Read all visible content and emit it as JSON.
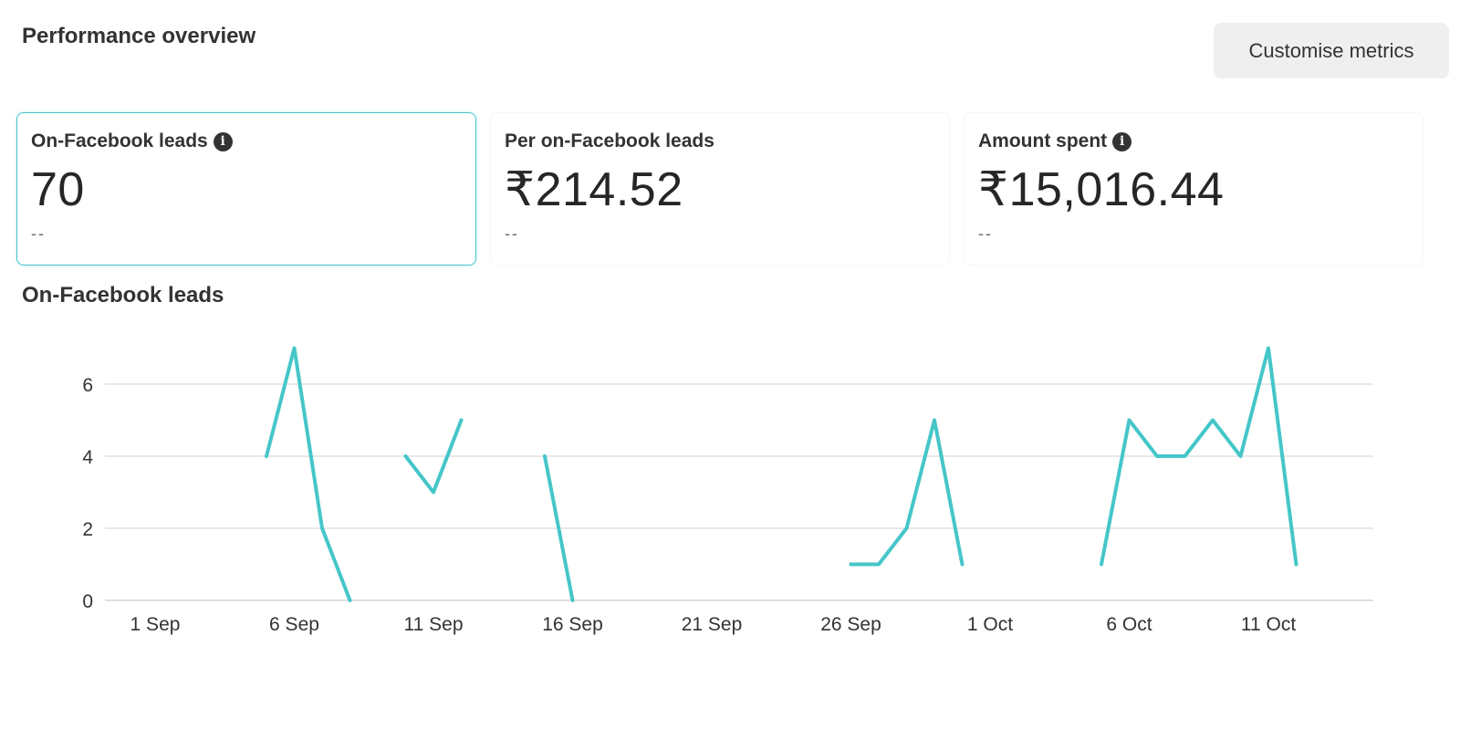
{
  "header": {
    "title": "Performance overview",
    "customise_label": "Customise metrics"
  },
  "metrics": [
    {
      "label": "On-Facebook leads",
      "value": "70",
      "compare": "--",
      "info_icon": "info-icon",
      "selected": true
    },
    {
      "label": "Per on-Facebook leads",
      "value": "₹214.52",
      "compare": "--",
      "selected": false
    },
    {
      "label": "Amount spent",
      "value": "₹15,016.44",
      "compare": "--",
      "info_icon": "info-icon",
      "selected": false
    }
  ],
  "chart_title": "On-Facebook leads",
  "chart_data": {
    "type": "line",
    "title": "On-Facebook leads",
    "xlabel": "",
    "ylabel": "",
    "ylim": [
      0,
      7
    ],
    "yticks": [
      0,
      2,
      4,
      6
    ],
    "x_tick_labels": [
      "1 Sep",
      "6 Sep",
      "11 Sep",
      "16 Sep",
      "21 Sep",
      "26 Sep",
      "1 Oct",
      "6 Oct",
      "11 Oct"
    ],
    "x": [
      "1 Sep",
      "2 Sep",
      "3 Sep",
      "4 Sep",
      "5 Sep",
      "6 Sep",
      "7 Sep",
      "8 Sep",
      "9 Sep",
      "10 Sep",
      "11 Sep",
      "12 Sep",
      "13 Sep",
      "14 Sep",
      "15 Sep",
      "16 Sep",
      "17 Sep",
      "18 Sep",
      "19 Sep",
      "20 Sep",
      "21 Sep",
      "22 Sep",
      "23 Sep",
      "24 Sep",
      "25 Sep",
      "26 Sep",
      "27 Sep",
      "28 Sep",
      "29 Sep",
      "30 Sep",
      "1 Oct",
      "2 Oct",
      "3 Oct",
      "4 Oct",
      "5 Oct",
      "6 Oct",
      "7 Oct",
      "8 Oct",
      "9 Oct",
      "10 Oct",
      "11 Oct",
      "12 Oct",
      "13 Oct",
      "14 Oct",
      "15 Oct",
      "16 Oct"
    ],
    "series": [
      {
        "color": "#45c6c9",
        "values": [
          null,
          null,
          null,
          null,
          4,
          7,
          2,
          0,
          null,
          4,
          3,
          5,
          null,
          null,
          4,
          0,
          null,
          null,
          null,
          null,
          null,
          null,
          null,
          null,
          null,
          1,
          1,
          2,
          5,
          1,
          null,
          null,
          null,
          null,
          1,
          5,
          4,
          4,
          5,
          4,
          7,
          1,
          null,
          null,
          null,
          null
        ]
      }
    ],
    "grid": true,
    "gridline_color": "#e0e0e0"
  }
}
